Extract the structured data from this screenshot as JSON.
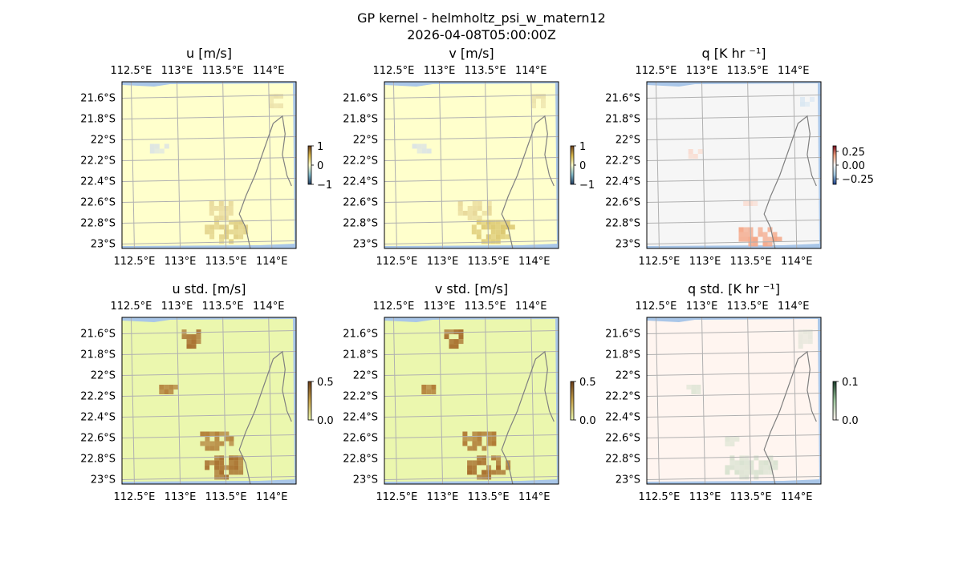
{
  "figure": {
    "title_line1": "GP kernel - helmholtz_psi_w_matern12",
    "title_line2": "2026-04-08T05:00:00Z"
  },
  "colors": {
    "land_fill": "#f2f2f2",
    "ocean_fill": "#a9c6e8",
    "gridline": "#b0b0b0",
    "coastline": "#808080"
  },
  "chart_data": [
    {
      "type": "heatmap",
      "id": "u",
      "title": "u [m/s]",
      "background": "#ffffcc",
      "xticks": [
        "112.5°E",
        "113°E",
        "113.5°E",
        "114°E"
      ],
      "yticks": [
        "21.6°S",
        "21.8°S",
        "22°S",
        "22.2°S",
        "22.4°S",
        "22.6°S",
        "22.8°S",
        "23°S"
      ],
      "lon_range": [
        112.4,
        114.3
      ],
      "lat_range": [
        -23.05,
        -21.45
      ],
      "colorbar": {
        "ticks": [
          "1",
          "0",
          "−1"
        ],
        "range": [
          -1,
          1
        ]
      },
      "patches": [
        {
          "lon": 112.75,
          "lat": -22.05,
          "rx": 0.15,
          "ry": 0.05,
          "value": -0.4,
          "color": "#dce4e4"
        },
        {
          "lon": 113.45,
          "lat": -22.65,
          "rx": 0.15,
          "ry": 0.1,
          "value": 0.5,
          "color": "#e8d99a"
        },
        {
          "lon": 113.5,
          "lat": -22.85,
          "rx": 0.25,
          "ry": 0.12,
          "value": 0.6,
          "color": "#e0cf84"
        },
        {
          "lon": 114.05,
          "lat": -21.6,
          "rx": 0.1,
          "ry": 0.08,
          "value": 0.4,
          "color": "#ece2aa"
        }
      ]
    },
    {
      "type": "heatmap",
      "id": "v",
      "title": "v [m/s]",
      "background": "#ffffcc",
      "xticks": [
        "112.5°E",
        "113°E",
        "113.5°E",
        "114°E"
      ],
      "yticks": [
        "21.6°S",
        "21.8°S",
        "22°S",
        "22.2°S",
        "22.4°S",
        "22.6°S",
        "22.8°S",
        "23°S"
      ],
      "lon_range": [
        112.4,
        114.3
      ],
      "lat_range": [
        -23.05,
        -21.45
      ],
      "colorbar": {
        "ticks": [
          "1",
          "0",
          "−1"
        ],
        "range": [
          -1,
          1
        ]
      },
      "patches": [
        {
          "lon": 112.8,
          "lat": -22.05,
          "rx": 0.15,
          "ry": 0.05,
          "value": -0.4,
          "color": "#dce4e4"
        },
        {
          "lon": 113.35,
          "lat": -22.65,
          "rx": 0.2,
          "ry": 0.1,
          "value": 0.5,
          "color": "#e8d99a"
        },
        {
          "lon": 113.55,
          "lat": -22.85,
          "rx": 0.25,
          "ry": 0.12,
          "value": 0.7,
          "color": "#dcc870"
        },
        {
          "lon": 114.05,
          "lat": -21.6,
          "rx": 0.1,
          "ry": 0.08,
          "value": 0.4,
          "color": "#ece2aa"
        }
      ]
    },
    {
      "type": "heatmap",
      "id": "q",
      "title": "q [K hr ⁻¹]",
      "background": "#f6f6f6",
      "xticks": [
        "112.5°E",
        "113°E",
        "113.5°E",
        "114°E"
      ],
      "yticks": [
        "21.6°S",
        "21.8°S",
        "22°S",
        "22.2°S",
        "22.4°S",
        "22.6°S",
        "22.8°S",
        "23°S"
      ],
      "lon_range": [
        112.4,
        114.3
      ],
      "lat_range": [
        -23.05,
        -21.45
      ],
      "colorbar": {
        "ticks": [
          "0.25",
          "0.00",
          "−0.25"
        ],
        "range": [
          -0.35,
          0.35
        ]
      },
      "patches": [
        {
          "lon": 112.9,
          "lat": -22.1,
          "rx": 0.1,
          "ry": 0.05,
          "value": 0.05,
          "color": "#f9ddd2"
        },
        {
          "lon": 113.6,
          "lat": -22.9,
          "rx": 0.25,
          "ry": 0.1,
          "value": 0.2,
          "color": "#f4a889"
        },
        {
          "lon": 113.5,
          "lat": -22.6,
          "rx": 0.1,
          "ry": 0.05,
          "value": 0.05,
          "color": "#f9ddd2"
        },
        {
          "lon": 114.1,
          "lat": -21.6,
          "rx": 0.08,
          "ry": 0.05,
          "value": -0.05,
          "color": "#dbe8f2"
        }
      ]
    },
    {
      "type": "heatmap",
      "id": "u_std",
      "title": "u std. [m/s]",
      "background": "#ebf7ae",
      "xticks": [
        "112.5°E",
        "113°E",
        "113.5°E",
        "114°E"
      ],
      "yticks": [
        "21.6°S",
        "21.8°S",
        "22°S",
        "22.2°S",
        "22.4°S",
        "22.6°S",
        "22.8°S",
        "23°S"
      ],
      "lon_range": [
        112.4,
        114.3
      ],
      "lat_range": [
        -23.05,
        -21.45
      ],
      "colorbar": {
        "ticks": [
          "0.5",
          "0.0"
        ],
        "range": [
          0,
          0.5
        ]
      },
      "patches": [
        {
          "lon": 113.12,
          "lat": -21.62,
          "rx": 0.12,
          "ry": 0.1,
          "value": 0.5,
          "color": "#a86f2e"
        },
        {
          "lon": 112.85,
          "lat": -22.1,
          "rx": 0.15,
          "ry": 0.05,
          "value": 0.5,
          "color": "#b07a34"
        },
        {
          "lon": 113.4,
          "lat": -22.6,
          "rx": 0.2,
          "ry": 0.1,
          "value": 0.5,
          "color": "#b07a34"
        },
        {
          "lon": 113.5,
          "lat": -22.85,
          "rx": 0.25,
          "ry": 0.12,
          "value": 0.5,
          "color": "#a86f2e"
        }
      ]
    },
    {
      "type": "heatmap",
      "id": "v_std",
      "title": "v std. [m/s]",
      "background": "#ebf7ae",
      "xticks": [
        "112.5°E",
        "113°E",
        "113.5°E",
        "114°E"
      ],
      "yticks": [
        "21.6°S",
        "21.8°S",
        "22°S",
        "22.2°S",
        "22.4°S",
        "22.6°S",
        "22.8°S",
        "23°S"
      ],
      "lon_range": [
        112.4,
        114.3
      ],
      "lat_range": [
        -23.05,
        -21.45
      ],
      "colorbar": {
        "ticks": [
          "0.5",
          "0.0"
        ],
        "range": [
          0,
          0.5
        ]
      },
      "patches": [
        {
          "lon": 113.12,
          "lat": -21.62,
          "rx": 0.12,
          "ry": 0.1,
          "value": 0.5,
          "color": "#a86f2e"
        },
        {
          "lon": 112.85,
          "lat": -22.1,
          "rx": 0.15,
          "ry": 0.05,
          "value": 0.5,
          "color": "#b07a34"
        },
        {
          "lon": 113.4,
          "lat": -22.6,
          "rx": 0.2,
          "ry": 0.1,
          "value": 0.5,
          "color": "#b07a34"
        },
        {
          "lon": 113.5,
          "lat": -22.85,
          "rx": 0.25,
          "ry": 0.12,
          "value": 0.5,
          "color": "#a86f2e"
        }
      ]
    },
    {
      "type": "heatmap",
      "id": "q_std",
      "title": "q std. [K hr ⁻¹]",
      "background": "#fff5f0",
      "xticks": [
        "112.5°E",
        "113°E",
        "113.5°E",
        "114°E"
      ],
      "yticks": [
        "21.6°S",
        "21.8°S",
        "22°S",
        "22.2°S",
        "22.4°S",
        "22.6°S",
        "22.8°S",
        "23°S"
      ],
      "lon_range": [
        112.4,
        114.3
      ],
      "lat_range": [
        -23.05,
        -21.45
      ],
      "colorbar": {
        "ticks": [
          "0.1",
          "0.0"
        ],
        "range": [
          0,
          0.1
        ]
      },
      "patches": [
        {
          "lon": 114.1,
          "lat": -21.62,
          "rx": 0.1,
          "ry": 0.1,
          "value": 0.03,
          "color": "#e7e7dc"
        },
        {
          "lon": 112.9,
          "lat": -22.1,
          "rx": 0.12,
          "ry": 0.05,
          "value": 0.03,
          "color": "#e0e6d6"
        },
        {
          "lon": 113.5,
          "lat": -22.85,
          "rx": 0.3,
          "ry": 0.12,
          "value": 0.04,
          "color": "#d9e2d0"
        },
        {
          "lon": 113.3,
          "lat": -22.6,
          "rx": 0.1,
          "ry": 0.05,
          "value": 0.03,
          "color": "#e0e6d6"
        }
      ]
    }
  ]
}
